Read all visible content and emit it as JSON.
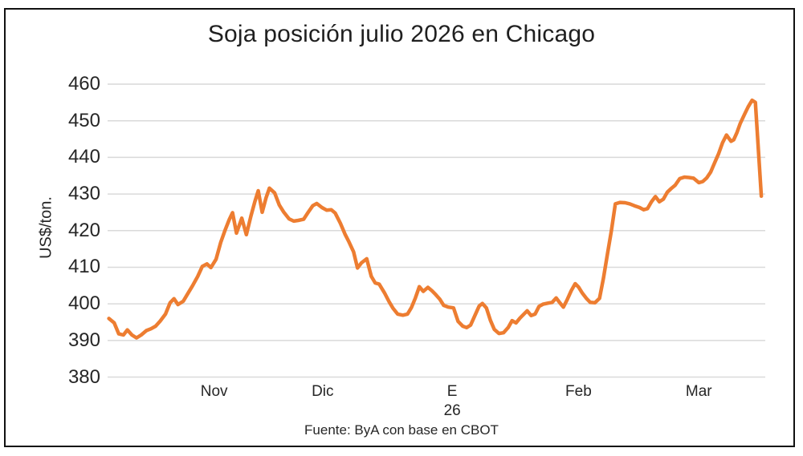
{
  "window": {
    "background_color": "#ffffff",
    "border_color": "#111111"
  },
  "chart_data": {
    "type": "line",
    "title": "Soja posición julio 2026 en Chicago",
    "ylabel": "US$/ton.",
    "source_note": "Fuente: ByA con base en CBOT",
    "legend": "none",
    "grid": true,
    "ylim": [
      380,
      460
    ],
    "y_ticks": [
      380,
      390,
      400,
      410,
      420,
      430,
      440,
      450,
      460
    ],
    "x_ticks": [
      {
        "label": "Nov",
        "pos": 0.162
      },
      {
        "label": "Dic",
        "pos": 0.327
      },
      {
        "label": "E",
        "pos": 0.524
      },
      {
        "label": "Feb",
        "pos": 0.716
      },
      {
        "label": "Mar",
        "pos": 0.899
      }
    ],
    "x_sublabel": {
      "label": "26",
      "pos": 0.524
    },
    "line_color": "#ED7D31",
    "grid_color": "#D9D9D9",
    "text_color": "#262626",
    "series": [
      {
        "points": [
          [
            0.002,
            396.0
          ],
          [
            0.01,
            394.8
          ],
          [
            0.017,
            391.8
          ],
          [
            0.024,
            391.5
          ],
          [
            0.03,
            392.9
          ],
          [
            0.037,
            391.5
          ],
          [
            0.044,
            390.7
          ],
          [
            0.051,
            391.5
          ],
          [
            0.059,
            392.7
          ],
          [
            0.066,
            393.2
          ],
          [
            0.073,
            393.9
          ],
          [
            0.08,
            395.3
          ],
          [
            0.088,
            397.2
          ],
          [
            0.095,
            400.3
          ],
          [
            0.101,
            401.4
          ],
          [
            0.107,
            399.8
          ],
          [
            0.115,
            400.7
          ],
          [
            0.122,
            402.8
          ],
          [
            0.129,
            404.9
          ],
          [
            0.137,
            407.5
          ],
          [
            0.144,
            410.2
          ],
          [
            0.151,
            410.9
          ],
          [
            0.157,
            409.9
          ],
          [
            0.165,
            412.2
          ],
          [
            0.172,
            416.8
          ],
          [
            0.179,
            420.3
          ],
          [
            0.185,
            423.0
          ],
          [
            0.19,
            424.9
          ],
          [
            0.196,
            419.3
          ],
          [
            0.204,
            423.4
          ],
          [
            0.211,
            418.9
          ],
          [
            0.218,
            424.0
          ],
          [
            0.224,
            428.0
          ],
          [
            0.229,
            430.9
          ],
          [
            0.235,
            425.0
          ],
          [
            0.241,
            429.0
          ],
          [
            0.246,
            431.6
          ],
          [
            0.254,
            430.3
          ],
          [
            0.261,
            427.0
          ],
          [
            0.268,
            425.0
          ],
          [
            0.276,
            423.2
          ],
          [
            0.283,
            422.6
          ],
          [
            0.29,
            422.8
          ],
          [
            0.298,
            423.1
          ],
          [
            0.305,
            425.0
          ],
          [
            0.312,
            426.8
          ],
          [
            0.318,
            427.4
          ],
          [
            0.326,
            426.3
          ],
          [
            0.333,
            425.6
          ],
          [
            0.34,
            425.7
          ],
          [
            0.346,
            424.8
          ],
          [
            0.354,
            422.0
          ],
          [
            0.361,
            419.0
          ],
          [
            0.367,
            416.9
          ],
          [
            0.374,
            414.2
          ],
          [
            0.38,
            409.8
          ],
          [
            0.386,
            411.2
          ],
          [
            0.394,
            412.3
          ],
          [
            0.401,
            407.5
          ],
          [
            0.407,
            405.7
          ],
          [
            0.413,
            405.4
          ],
          [
            0.421,
            403.0
          ],
          [
            0.428,
            400.6
          ],
          [
            0.434,
            398.8
          ],
          [
            0.441,
            397.2
          ],
          [
            0.449,
            396.9
          ],
          [
            0.456,
            397.2
          ],
          [
            0.462,
            399.0
          ],
          [
            0.468,
            401.6
          ],
          [
            0.474,
            404.7
          ],
          [
            0.48,
            403.4
          ],
          [
            0.487,
            404.5
          ],
          [
            0.493,
            403.6
          ],
          [
            0.499,
            402.5
          ],
          [
            0.505,
            401.3
          ],
          [
            0.511,
            399.6
          ],
          [
            0.518,
            399.1
          ],
          [
            0.526,
            398.9
          ],
          [
            0.533,
            395.2
          ],
          [
            0.54,
            393.9
          ],
          [
            0.546,
            393.5
          ],
          [
            0.552,
            394.2
          ],
          [
            0.559,
            397.0
          ],
          [
            0.565,
            399.4
          ],
          [
            0.57,
            400.1
          ],
          [
            0.576,
            398.9
          ],
          [
            0.582,
            395.5
          ],
          [
            0.588,
            393.0
          ],
          [
            0.595,
            391.9
          ],
          [
            0.602,
            392.1
          ],
          [
            0.609,
            393.5
          ],
          [
            0.615,
            395.4
          ],
          [
            0.621,
            394.8
          ],
          [
            0.627,
            396.1
          ],
          [
            0.633,
            397.2
          ],
          [
            0.638,
            398.1
          ],
          [
            0.644,
            396.8
          ],
          [
            0.65,
            397.2
          ],
          [
            0.656,
            399.3
          ],
          [
            0.662,
            399.9
          ],
          [
            0.67,
            400.2
          ],
          [
            0.676,
            400.4
          ],
          [
            0.682,
            401.6
          ],
          [
            0.688,
            400.2
          ],
          [
            0.693,
            399.1
          ],
          [
            0.699,
            401.2
          ],
          [
            0.705,
            403.6
          ],
          [
            0.711,
            405.5
          ],
          [
            0.716,
            404.6
          ],
          [
            0.722,
            402.9
          ],
          [
            0.728,
            401.5
          ],
          [
            0.734,
            400.4
          ],
          [
            0.741,
            400.3
          ],
          [
            0.748,
            401.5
          ],
          [
            0.754,
            407.0
          ],
          [
            0.76,
            413.5
          ],
          [
            0.766,
            420.0
          ],
          [
            0.772,
            427.3
          ],
          [
            0.779,
            427.7
          ],
          [
            0.787,
            427.6
          ],
          [
            0.794,
            427.3
          ],
          [
            0.801,
            426.8
          ],
          [
            0.809,
            426.3
          ],
          [
            0.815,
            425.7
          ],
          [
            0.821,
            426.0
          ],
          [
            0.827,
            427.9
          ],
          [
            0.833,
            429.3
          ],
          [
            0.839,
            427.9
          ],
          [
            0.845,
            428.6
          ],
          [
            0.851,
            430.5
          ],
          [
            0.857,
            431.5
          ],
          [
            0.863,
            432.4
          ],
          [
            0.87,
            434.2
          ],
          [
            0.877,
            434.6
          ],
          [
            0.884,
            434.5
          ],
          [
            0.891,
            434.3
          ],
          [
            0.899,
            433.1
          ],
          [
            0.905,
            433.4
          ],
          [
            0.911,
            434.4
          ],
          [
            0.917,
            436.0
          ],
          [
            0.923,
            438.5
          ],
          [
            0.929,
            441.0
          ],
          [
            0.935,
            444.0
          ],
          [
            0.941,
            446.1
          ],
          [
            0.948,
            444.4
          ],
          [
            0.952,
            444.8
          ],
          [
            0.957,
            446.8
          ],
          [
            0.962,
            449.3
          ],
          [
            0.968,
            451.6
          ],
          [
            0.974,
            453.8
          ],
          [
            0.98,
            455.6
          ],
          [
            0.985,
            455.0
          ],
          [
            0.994,
            429.4
          ]
        ]
      }
    ]
  }
}
